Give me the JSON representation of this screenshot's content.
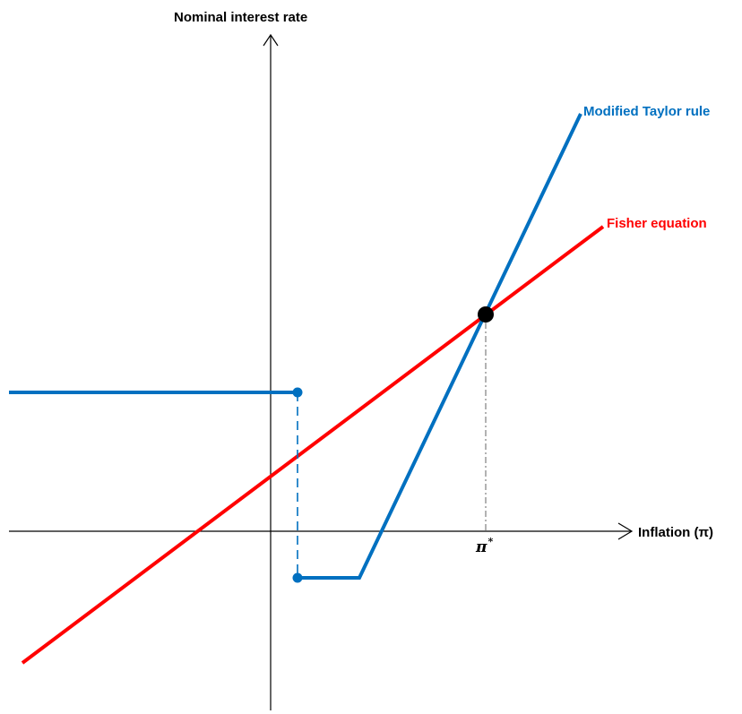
{
  "labels": {
    "y_axis": "Nominal interest rate",
    "x_axis": "Inflation (π)",
    "taylor": "Modified Taylor rule",
    "fisher": "Fisher equation",
    "pi_star_symbol": "π",
    "pi_star_superscript": "*"
  },
  "colors": {
    "taylor": "#0070C0",
    "fisher": "#FF0000",
    "axes": "#000000",
    "guide": "#7f7f7f",
    "equilibrium": "#000000"
  }
}
